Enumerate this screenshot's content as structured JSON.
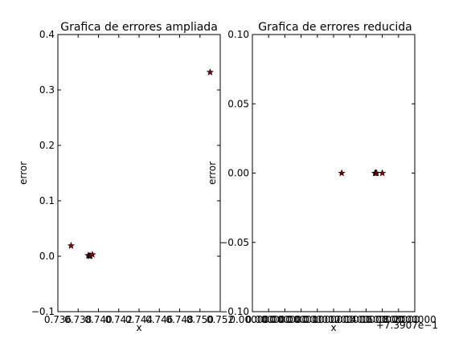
{
  "chart_data": [
    {
      "type": "scatter",
      "title": "Grafica de errores ampliada",
      "xlabel": "x",
      "ylabel": "error",
      "xlim": [
        0.736,
        0.752
      ],
      "ylim": [
        -0.1,
        0.4
      ],
      "xticks": [
        0.736,
        0.738,
        0.74,
        0.742,
        0.744,
        0.746,
        0.748,
        0.75,
        0.752
      ],
      "xtick_labels": [
        "0.736",
        "0.738",
        "0.740",
        "0.742",
        "0.744",
        "0.746",
        "0.748",
        "0.750",
        "0.752"
      ],
      "yticks": [
        -0.1,
        0.0,
        0.1,
        0.2,
        0.3,
        0.4
      ],
      "ytick_labels": [
        "−0.1",
        "0.0",
        "0.1",
        "0.2",
        "0.3",
        "0.4"
      ],
      "offset_text": "",
      "marker": "star",
      "marker_color": "#8b0000",
      "grid": false,
      "points": [
        {
          "x": 0.7373,
          "y": 0.019
        },
        {
          "x": 0.739,
          "y": 0.0015
        },
        {
          "x": 0.7391,
          "y": 0.0005
        },
        {
          "x": 0.7392,
          "y": 0.0005
        },
        {
          "x": 0.7394,
          "y": 0.003
        },
        {
          "x": 0.751,
          "y": 0.332
        }
      ]
    },
    {
      "type": "scatter",
      "title": "Grafica de errores reducida",
      "xlabel": "x",
      "ylabel": "error",
      "xlim": [
        0.0,
        2e-10
      ],
      "ylim": [
        -0.1,
        0.1
      ],
      "xticks": [
        0.0,
        2e-11,
        4e-11,
        6e-11,
        8e-11,
        1e-10,
        1.2e-10,
        1.4e-10,
        1.6e-10,
        1.8e-10,
        2e-10
      ],
      "xtick_labels": [
        "0.000000",
        "0.000000",
        "0.000000",
        "0.000000",
        "0.000000",
        "1000000",
        "1200000",
        "1400000",
        "1600000",
        "1800000",
        "2000000"
      ],
      "yticks": [
        -0.1,
        -0.05,
        0.0,
        0.05,
        0.1
      ],
      "ytick_labels": [
        "−0.10",
        "−0.05",
        "0.00",
        "0.05",
        "0.10"
      ],
      "offset_text": "+7.3907e−1",
      "marker": "star",
      "marker_color": "#8b0000",
      "grid": false,
      "points": [
        {
          "x": 1.1e-10,
          "y": 0.0
        },
        {
          "x": 1.51e-10,
          "y": 0.0
        },
        {
          "x": 1.52e-10,
          "y": 0.0
        },
        {
          "x": 1.53e-10,
          "y": 0.0
        },
        {
          "x": 1.6e-10,
          "y": 0.0
        }
      ]
    }
  ]
}
